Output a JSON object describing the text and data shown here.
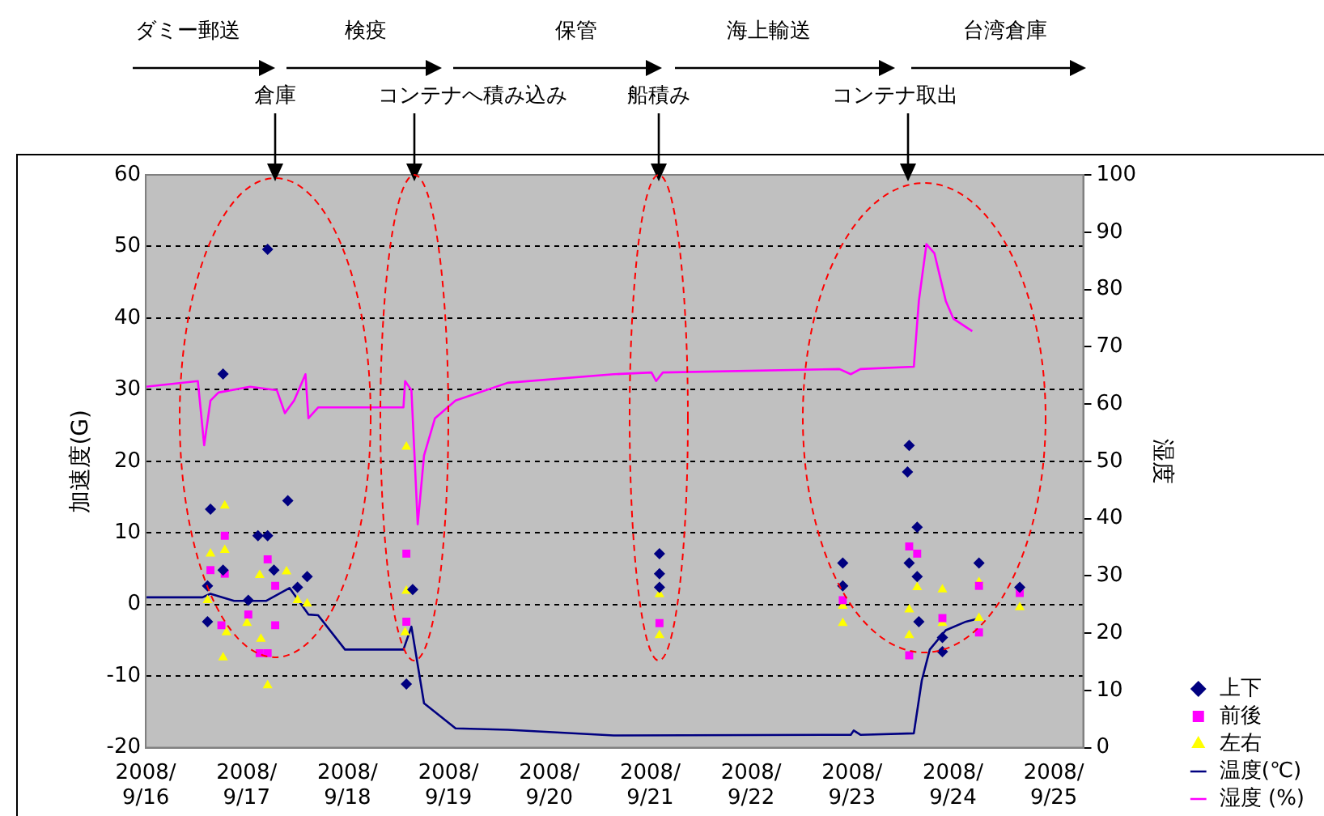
{
  "chart_data": {
    "type": "scatter",
    "ylabel": "加速度(G)",
    "y2label": "湿度",
    "legend": "right",
    "grid": "y",
    "annotations": [
      "ダミー郵送",
      "検疫",
      "保管",
      "海上輸送",
      "台湾倉庫",
      "倉庫",
      "コンテナへ積み込み",
      "船積み",
      "コンテナ取出"
    ],
    "xlim": [
      "2008-09-16",
      "2008-09-25T07:00"
    ],
    "xticks": [
      {
        "value": "2008-09-16",
        "label": "2008/\n9/16"
      },
      {
        "value": "2008-09-17",
        "label": "2008/\n9/17"
      },
      {
        "value": "2008-09-18",
        "label": "2008/\n9/18"
      },
      {
        "value": "2008-09-19",
        "label": "2008/\n9/19"
      },
      {
        "value": "2008-09-20",
        "label": "2008/\n9/20"
      },
      {
        "value": "2008-09-21",
        "label": "2008/\n9/21"
      },
      {
        "value": "2008-09-22",
        "label": "2008/\n9/22"
      },
      {
        "value": "2008-09-23",
        "label": "2008/\n9/23"
      },
      {
        "value": "2008-09-24",
        "label": "2008/\n9/24"
      },
      {
        "value": "2008-09-25",
        "label": "2008/\n9/25"
      }
    ],
    "ylim": [
      -20,
      60
    ],
    "yticks": [
      -20,
      -10,
      0,
      10,
      20,
      30,
      40,
      50,
      60
    ],
    "y2lim": [
      0,
      100
    ],
    "y2ticks": [
      0,
      10,
      20,
      30,
      40,
      50,
      60,
      70,
      80,
      90,
      100
    ],
    "series": [
      {
        "name": "上下",
        "type": "scatter",
        "marker": "diamond",
        "color": "#000080",
        "x": [
          "2008-09-17T05:00",
          "2008-09-16T18:24",
          "2008-09-16T15:24",
          "2008-09-17T09:48",
          "2008-09-17T02:42",
          "2008-09-17T05:00",
          "2008-09-17T06:30",
          "2008-09-16T18:24",
          "2008-09-16T14:42",
          "2008-09-16T14:42",
          "2008-09-17T00:24",
          "2008-09-17T12:06",
          "2008-09-17T14:24",
          "2008-09-18T14:00",
          "2008-09-18T15:30",
          "2008-09-21T02:12",
          "2008-09-21T02:12",
          "2008-09-21T02:12",
          "2008-09-22T21:48",
          "2008-09-22T21:48",
          "2008-09-23T13:36",
          "2008-09-23T13:12",
          "2008-09-23T15:30",
          "2008-09-23T13:36",
          "2008-09-23T15:30",
          "2008-09-23T15:54",
          "2008-09-23T21:30",
          "2008-09-23T21:30",
          "2008-09-24T06:12",
          "2008-09-24T15:54"
        ],
        "values": [
          49.6,
          32.2,
          13.3,
          14.5,
          9.6,
          9.6,
          4.8,
          4.8,
          2.6,
          -2.4,
          0.6,
          2.4,
          3.9,
          -11.1,
          2.1,
          7.1,
          4.3,
          2.4,
          5.8,
          2.6,
          22.2,
          18.5,
          10.8,
          5.8,
          3.9,
          -2.4,
          -6.6,
          -4.6,
          5.8,
          2.4
        ]
      },
      {
        "name": "前後",
        "type": "scatter",
        "marker": "square",
        "color": "#ff00ff",
        "x": [
          "2008-09-16T18:48",
          "2008-09-16T15:24",
          "2008-09-16T18:48",
          "2008-09-16T18:00",
          "2008-09-17T05:00",
          "2008-09-17T03:06",
          "2008-09-17T05:00",
          "2008-09-17T06:48",
          "2008-09-17T06:48",
          "2008-09-17T00:24",
          "2008-09-18T14:00",
          "2008-09-18T14:00",
          "2008-09-21T02:12",
          "2008-09-22T21:48",
          "2008-09-23T13:36",
          "2008-09-23T15:30",
          "2008-09-23T13:36",
          "2008-09-23T21:30",
          "2008-09-24T06:12",
          "2008-09-24T06:12",
          "2008-09-24T15:54"
        ],
        "values": [
          9.6,
          4.8,
          4.3,
          -2.9,
          6.3,
          -6.8,
          -6.8,
          -2.9,
          2.6,
          -1.4,
          7.1,
          -2.4,
          -2.6,
          0.6,
          8.1,
          7.1,
          -7.1,
          -1.9,
          2.6,
          -3.9,
          1.6
        ]
      },
      {
        "name": "左右",
        "type": "scatter",
        "marker": "triangle",
        "color": "#ffff00",
        "x": [
          "2008-09-16T18:48",
          "2008-09-16T15:24",
          "2008-09-16T18:48",
          "2008-09-16T18:24",
          "2008-09-16T19:12",
          "2008-09-17T05:00",
          "2008-09-17T03:06",
          "2008-09-17T09:30",
          "2008-09-17T00:06",
          "2008-09-17T03:24",
          "2008-09-17T12:06",
          "2008-09-17T14:24",
          "2008-09-16T14:42",
          "2008-09-18T14:00",
          "2008-09-18T14:00",
          "2008-09-18T13:42",
          "2008-09-21T02:12",
          "2008-09-21T02:12",
          "2008-09-22T21:48",
          "2008-09-22T21:48",
          "2008-09-23T13:36",
          "2008-09-23T13:36",
          "2008-09-23T15:30",
          "2008-09-23T21:30",
          "2008-09-23T21:30",
          "2008-09-24T06:12",
          "2008-09-24T06:12",
          "2008-09-24T15:54"
        ],
        "values": [
          13.8,
          7.1,
          7.6,
          -7.4,
          -3.9,
          -11.3,
          4.1,
          4.6,
          -2.6,
          -4.8,
          0.6,
          0.1,
          0.6,
          22,
          1.9,
          -3.9,
          1.4,
          -4.3,
          -0.2,
          -2.6,
          -0.7,
          -4.3,
          2.4,
          2.1,
          -2.6,
          3.1,
          -1.9,
          -0.4
        ]
      },
      {
        "name": "温度(℃)",
        "type": "line",
        "marker": "none",
        "color": "#000080",
        "x": [
          "2008-09-16T00:00",
          "2008-09-16T13:30",
          "2008-09-16T15:24",
          "2008-09-16T21:00",
          "2008-09-17T04:36",
          "2008-09-17T10:12",
          "2008-09-17T14:42",
          "2008-09-17T17:00",
          "2008-09-17T23:24",
          "2008-09-18T13:18",
          "2008-09-18T15:12",
          "2008-09-18T18:12",
          "2008-09-19T01:42",
          "2008-09-19T14:06",
          "2008-09-20T15:18",
          "2008-09-22T23:42",
          "2008-09-23T00:24",
          "2008-09-23T02:00",
          "2008-09-23T14:42",
          "2008-09-23T16:36",
          "2008-09-23T18:30",
          "2008-09-23T22:18",
          "2008-09-24T03:06",
          "2008-09-24T06:30"
        ],
        "values": [
          1,
          1,
          1.5,
          0.5,
          0.5,
          2.3,
          -1.4,
          -1.5,
          -6.3,
          -6.3,
          -3.1,
          -13.8,
          -17.3,
          -17.5,
          -18.3,
          -18.2,
          -17.6,
          -18.2,
          -18,
          -10.6,
          -6.3,
          -3.6,
          -2.4,
          -1.9
        ]
      },
      {
        "name": "湿度 (%)",
        "type": "line",
        "marker": "none",
        "axis": "y2",
        "color": "#ff00ff",
        "x": [
          "2008-09-16T00:00",
          "2008-09-16T12:24",
          "2008-09-16T13:54",
          "2008-09-16T15:24",
          "2008-09-16T17:18",
          "2008-09-17T00:48",
          "2008-09-17T07:12",
          "2008-09-17T09:06",
          "2008-09-17T11:18",
          "2008-09-17T14:00",
          "2008-09-17T14:42",
          "2008-09-17T17:00",
          "2008-09-18T13:18",
          "2008-09-18T13:42",
          "2008-09-18T15:12",
          "2008-09-18T16:42",
          "2008-09-18T18:12",
          "2008-09-18T20:48",
          "2008-09-19T01:42",
          "2008-09-19T14:06",
          "2008-09-20T15:18",
          "2008-09-21T00:18",
          "2008-09-21T01:24",
          "2008-09-21T03:00",
          "2008-09-22T21:00",
          "2008-09-22T23:42",
          "2008-09-23T02:00",
          "2008-09-23T14:42",
          "2008-09-23T15:54",
          "2008-09-23T17:42",
          "2008-09-23T19:36",
          "2008-09-23T22:18",
          "2008-09-24T00:06",
          "2008-09-24T04:36"
        ],
        "values": [
          63,
          64,
          52.8,
          60.6,
          62,
          63,
          62.4,
          58.4,
          60.6,
          65.2,
          57.5,
          59.4,
          59.4,
          64,
          62.4,
          39,
          51,
          57.5,
          60.6,
          63.7,
          65.2,
          65.5,
          64,
          65.5,
          66.1,
          65.2,
          66.1,
          66.5,
          78,
          87.9,
          86.3,
          78,
          74.9,
          72.7
        ]
      }
    ]
  }
}
